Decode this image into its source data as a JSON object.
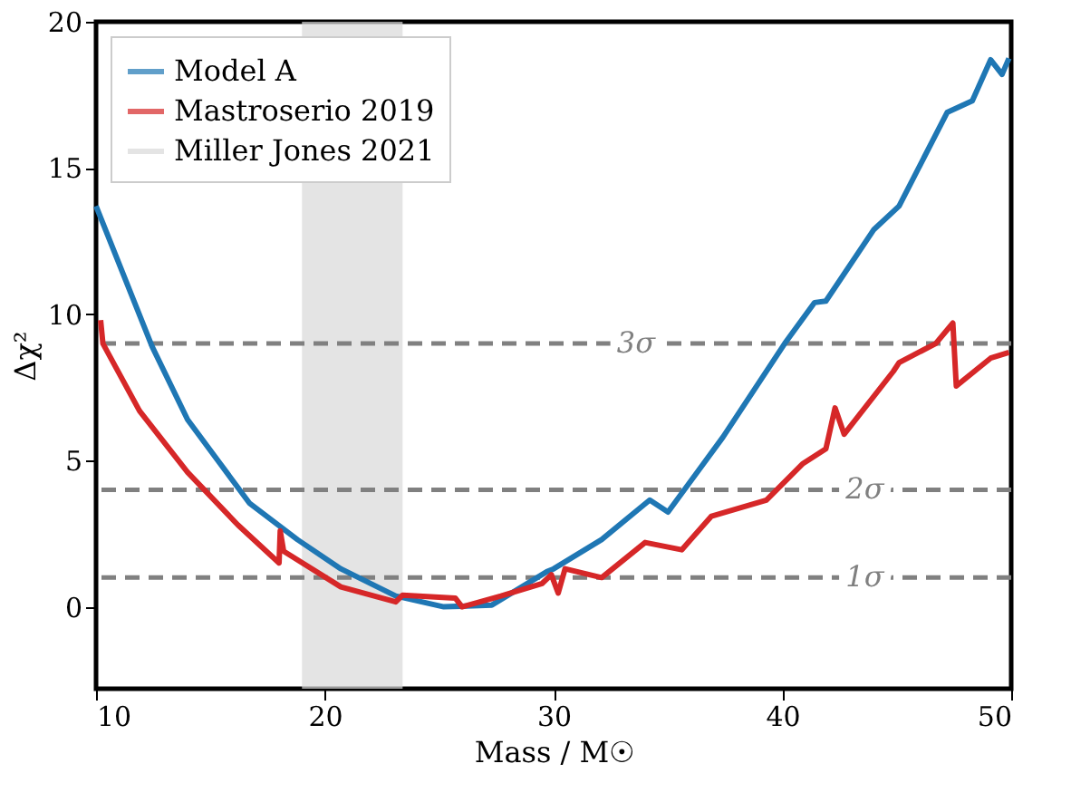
{
  "chart_data": {
    "type": "line",
    "xlabel": "Mass / M☉",
    "ylabel": "Δχ²",
    "xlim": [
      10,
      50
    ],
    "xticks": [
      10,
      20,
      30,
      40,
      50
    ],
    "ylim": [
      -2.8,
      20
    ],
    "yticks": [
      0,
      5,
      10,
      15,
      20
    ],
    "grid": false,
    "legend": "top left",
    "line_style": "solid",
    "marker": "none",
    "series": [
      {
        "name": "Model A",
        "color": "#1f77b4",
        "x": [
          10,
          12.45,
          14.0,
          16.7,
          18.8,
          20.7,
          23.1,
          25.2,
          27.3,
          29.7,
          30.0,
          32.1,
          34.2,
          35.0,
          37.4,
          40.1,
          41.4,
          41.9,
          44.0,
          45.1,
          47.2,
          48.3,
          49.1,
          49.6,
          49.9
        ],
        "values": [
          13.7,
          8.9,
          6.4,
          3.55,
          2.3,
          1.3,
          0.37,
          0,
          0.06,
          1.2,
          1.3,
          2.3,
          3.65,
          3.24,
          5.8,
          9.0,
          10.4,
          10.45,
          12.9,
          13.7,
          16.9,
          17.3,
          18.7,
          18.2,
          18.75
        ]
      },
      {
        "name": "Mastroserio 2019",
        "color": "#d62728",
        "x": [
          10.2,
          10.3,
          11.9,
          14.0,
          16.2,
          18.0,
          18.05,
          18.2,
          20.7,
          23.1,
          23.4,
          25.7,
          26.0,
          27.7,
          29.5,
          29.9,
          30.2,
          30.5,
          32.1,
          34.0,
          35.6,
          36.9,
          39.3,
          40.9,
          41.9,
          42.3,
          42.7,
          44.85,
          45.1,
          46.7,
          47.45,
          47.6,
          49.1,
          49.9
        ],
        "values": [
          9.8,
          9.0,
          6.7,
          4.6,
          2.8,
          1.5,
          2.6,
          1.9,
          0.68,
          0.17,
          0.4,
          0.3,
          0.0,
          0.37,
          0.8,
          1.1,
          0.47,
          1.3,
          1.0,
          2.2,
          1.95,
          3.1,
          3.65,
          4.9,
          5.4,
          6.8,
          5.9,
          8.05,
          8.35,
          9.0,
          9.7,
          7.55,
          8.5,
          8.7
        ]
      }
    ],
    "bands": [
      {
        "axis": "x",
        "from": 19.0,
        "to": 23.4,
        "label": "Miller Jones 2021",
        "color": "#d9d9d9"
      }
    ],
    "ref_lines": [
      {
        "axis": "y",
        "value": 9,
        "label": "3σ",
        "color": "#808080",
        "line_style": "dashed"
      },
      {
        "axis": "y",
        "value": 4,
        "label": "2σ",
        "color": "#808080",
        "line_style": "dashed"
      },
      {
        "axis": "y",
        "value": 1,
        "label": "1σ",
        "color": "#808080",
        "line_style": "dashed"
      }
    ]
  }
}
